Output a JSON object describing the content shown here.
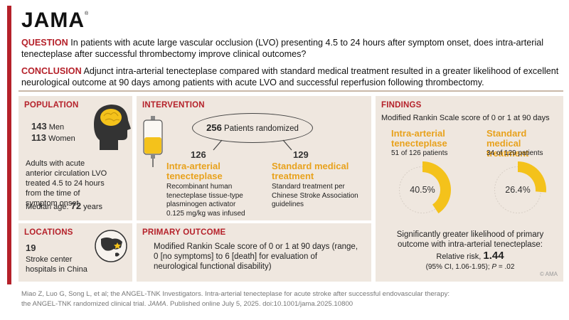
{
  "brand": {
    "logo": "JAMA",
    "trademark": "®"
  },
  "question": {
    "label": "QUESTION",
    "text": "In patients with acute large vascular occlusion (LVO) presenting 4.5 to 24 hours after symptom onset, does intra-arterial tenecteplase after successful thrombectomy improve clinical outcomes?"
  },
  "conclusion": {
    "label": "CONCLUSION",
    "text": "Adjunct intra-arterial tenecteplase compared with standard medical treatment resulted in a greater likelihood of excellent neurological outcome at 90 days among patients with acute LVO and successful reperfusion following thrombectomy."
  },
  "population": {
    "title": "POPULATION",
    "men_count": "143",
    "men_label": "Men",
    "women_count": "113",
    "women_label": "Women",
    "description": "Adults with acute anterior circulation LVO treated 4.5 to 24 hours from the time of symptom onset",
    "median_age_label": "Median age:",
    "median_age_value": "72",
    "median_age_unit": "years",
    "icon": "head-brain-icon"
  },
  "locations": {
    "title": "LOCATIONS",
    "count": "19",
    "description": "Stroke center hospitals in China",
    "icon": "globe-icon"
  },
  "intervention": {
    "title": "INTERVENTION",
    "randomized_count": "256",
    "randomized_label": "Patients randomized",
    "arm1": {
      "count": "126",
      "name": "Intra-arterial tenecteplase",
      "description": "Recombinant human tenecteplase tissue-type plasminogen activator 0.125 mg/kg was infused"
    },
    "arm2": {
      "count": "129",
      "name": "Standard medical treatment",
      "description": "Standard treatment per Chinese Stroke Association guidelines"
    },
    "icon": "iv-bag-icon"
  },
  "primary_outcome": {
    "title": "PRIMARY OUTCOME",
    "text": "Modified Rankin Scale score of 0 or 1 at 90 days (range, 0 [no symptoms] to 6 [death] for evaluation of neurological functional disability)"
  },
  "findings": {
    "title": "FINDINGS",
    "subtitle": "Modified Rankin Scale score of 0 or 1 at 90 days",
    "group1": {
      "name": "Intra-arterial tenecteplase",
      "detail": "51 of 126 patients",
      "percent_label": "40.5%",
      "value": 40.5
    },
    "group2": {
      "name": "Standard medical treatment",
      "detail": "34 of 129 patients",
      "percent_label": "26.4%",
      "value": 26.4
    },
    "summary": "Significantly greater likelihood of primary outcome with intra-arterial tenecteplase:",
    "rr_label": "Relative risk,",
    "rr_value": "1.44",
    "ci_text": "(95% CI, 1.06-1.95);",
    "p_label": "P",
    "p_value": "= .02",
    "copyright": "© AMA"
  },
  "chart_data": {
    "type": "pie",
    "categories": [
      "Intra-arterial tenecteplase",
      "Standard medical treatment"
    ],
    "values": [
      40.5,
      26.4
    ],
    "title": "Modified Rankin Scale score of 0 or 1 at 90 days"
  },
  "citation": {
    "line1": "Miao Z, Luo G, Song L, et al; the ANGEL-TNK Investigators. Intra-arterial tenecteplase for acute stroke after successful endovascular therapy:",
    "line2_pre": "the ANGEL-TNK randomized clinical trial.",
    "journal": "JAMA",
    "line2_post": ". Published online July 5, 2025. doi:10.1001/jama.2025.10800"
  },
  "colors": {
    "accent_red": "#b5212a",
    "accent_yellow": "#f4c21b",
    "panel_bg": "#efe7df",
    "orange_text": "#e8a21d"
  }
}
